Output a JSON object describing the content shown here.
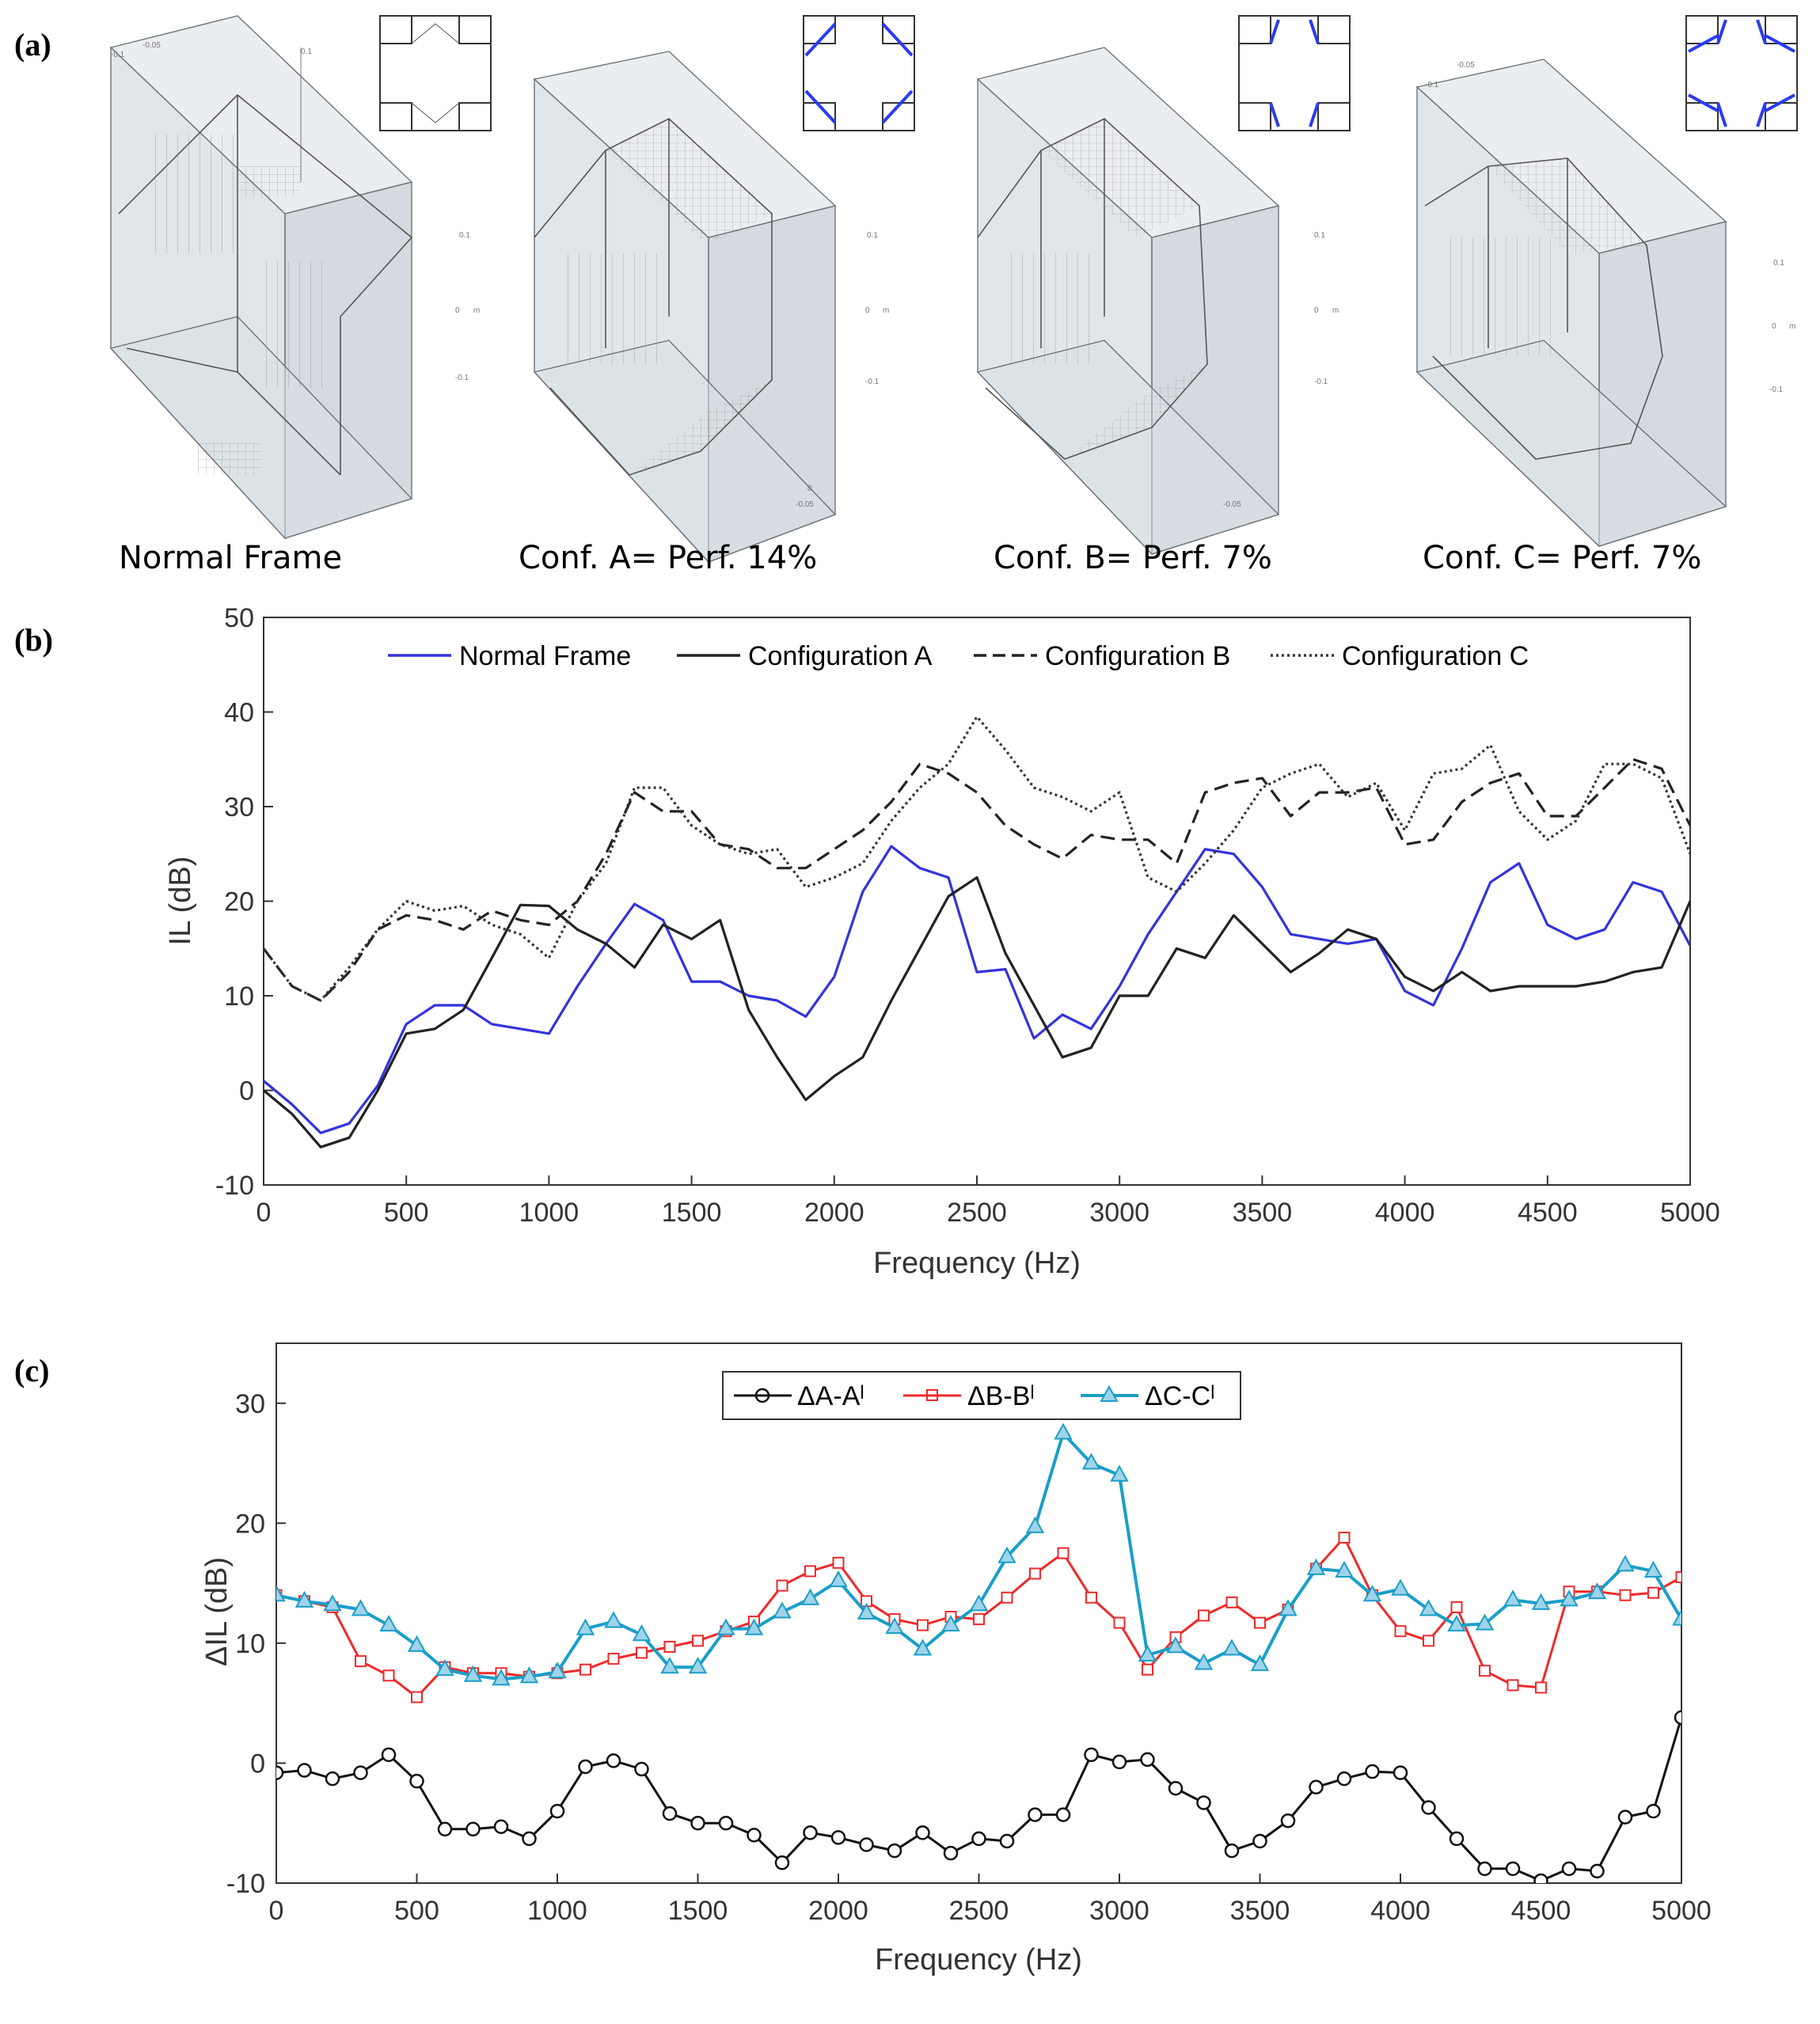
{
  "panel_labels": {
    "a": "(a)",
    "b": "(b)",
    "c": "(c)"
  },
  "panel_a": {
    "captions": [
      "Normal Frame",
      "Conf. A= Perf. 14%",
      "Conf. B= Perf. 7%",
      "Conf. C= Perf. 7%"
    ],
    "model_axis_ticks": [
      "0.1",
      "0",
      "-0.1",
      "-0.05",
      "0"
    ],
    "model_axis_unit": "m"
  },
  "colors": {
    "normal_frame": "#3333dd",
    "config_lines": "#222222",
    "delta_a": "#111111",
    "delta_b": "#ee2a2a",
    "delta_c": "#1a9ec8"
  },
  "chart_data": [
    {
      "type": "line",
      "panel": "b",
      "title": "",
      "xlabel": "Frequency (Hz)",
      "ylabel": "IL (dB)",
      "xlim": [
        0,
        5000
      ],
      "ylim": [
        -10,
        50
      ],
      "xticks": [
        0,
        500,
        1000,
        1500,
        2000,
        2500,
        3000,
        3500,
        4000,
        4500,
        5000
      ],
      "yticks": [
        -10,
        0,
        10,
        20,
        30,
        40,
        50
      ],
      "legend_position": "top",
      "x": [
        0,
        100,
        200,
        300,
        400,
        500,
        600,
        700,
        800,
        900,
        1000,
        1100,
        1200,
        1300,
        1400,
        1500,
        1600,
        1700,
        1800,
        1900,
        2000,
        2100,
        2200,
        2300,
        2400,
        2500,
        2600,
        2700,
        2800,
        2900,
        3000,
        3100,
        3200,
        3300,
        3400,
        3500,
        3600,
        3700,
        3800,
        3900,
        4000,
        4100,
        4200,
        4300,
        4400,
        4500,
        4600,
        4700,
        4800,
        4900,
        5000
      ],
      "series": [
        {
          "name": "Normal Frame",
          "style": "solid",
          "color": "#3333dd",
          "values": [
            1,
            -1.5,
            -4.5,
            -3.5,
            0.5,
            7,
            9,
            9,
            7,
            6.5,
            6,
            11,
            15.5,
            19.7,
            18,
            11.5,
            11.5,
            10,
            9.5,
            7.8,
            12,
            21,
            25.8,
            23.5,
            22.5,
            12.5,
            12.8,
            5.5,
            8,
            6.5,
            11,
            16.5,
            21,
            25.5,
            25,
            21.5,
            16.5,
            16,
            15.5,
            16,
            10.5,
            9,
            15,
            22,
            24,
            17.5,
            16,
            17,
            22,
            21,
            15.3
          ]
        },
        {
          "name": "Configuration A",
          "style": "solid",
          "color": "#222222",
          "values": [
            0,
            -2.5,
            -6,
            -5,
            0,
            6,
            6.5,
            8.5,
            14,
            19.6,
            19.5,
            17,
            15.5,
            13,
            17.5,
            16,
            18,
            8.5,
            3.5,
            -1,
            1.5,
            3.5,
            9.5,
            15,
            20.5,
            22.5,
            14.5,
            9,
            3.5,
            4.5,
            10,
            10,
            15,
            14,
            18.5,
            15.5,
            12.5,
            14.5,
            17,
            16,
            12,
            10.5,
            12.5,
            10.5,
            11,
            11,
            11,
            11.5,
            12.5,
            13,
            20
          ]
        },
        {
          "name": "Configuration B",
          "style": "dashed",
          "color": "#222222",
          "values": [
            15,
            11,
            9.5,
            12.5,
            17,
            18.5,
            18,
            17,
            19,
            18,
            17.5,
            20,
            25,
            31.5,
            29.5,
            29.5,
            26,
            25.5,
            23.5,
            23.5,
            25.5,
            27.5,
            30.5,
            34.5,
            33.5,
            31.5,
            28,
            26,
            24.5,
            27,
            26.5,
            26.5,
            24,
            31.5,
            32.5,
            33,
            29,
            31.5,
            31.5,
            32,
            26,
            26.5,
            30.5,
            32.5,
            33.5,
            29,
            29,
            32,
            35,
            34,
            28
          ]
        },
        {
          "name": "Configuration C",
          "style": "dotted",
          "color": "#333333",
          "values": [
            15,
            11,
            9.5,
            13,
            17,
            20,
            19,
            19.5,
            17.5,
            16.5,
            14,
            20,
            24,
            32,
            32,
            28,
            26,
            25,
            25.5,
            21.5,
            22.5,
            24,
            28.5,
            32,
            34.5,
            39.5,
            36,
            32,
            31,
            29.5,
            31.5,
            22.5,
            21,
            24,
            27.5,
            32,
            33.5,
            34.5,
            31,
            32.5,
            27.5,
            33.5,
            34,
            36.5,
            29.5,
            26.5,
            28.5,
            34.5,
            34.5,
            33,
            25
          ]
        }
      ]
    },
    {
      "type": "line",
      "panel": "c",
      "title": "",
      "xlabel": "Frequency (Hz)",
      "ylabel": "ΔIL (dB)",
      "xlim": [
        0,
        5000
      ],
      "ylim": [
        -10,
        35
      ],
      "xticks": [
        0,
        500,
        1000,
        1500,
        2000,
        2500,
        3000,
        3500,
        4000,
        4500,
        5000
      ],
      "yticks": [
        -10,
        0,
        10,
        20,
        30
      ],
      "legend_position": "top",
      "x": [
        0,
        100,
        200,
        300,
        400,
        500,
        600,
        700,
        800,
        900,
        1000,
        1100,
        1200,
        1300,
        1400,
        1500,
        1600,
        1700,
        1800,
        1900,
        2000,
        2100,
        2200,
        2300,
        2400,
        2500,
        2600,
        2700,
        2800,
        2900,
        3000,
        3100,
        3200,
        3300,
        3400,
        3500,
        3600,
        3700,
        3800,
        3900,
        4000,
        4100,
        4200,
        4300,
        4400,
        4500,
        4600,
        4700,
        4800,
        4900,
        5000
      ],
      "series": [
        {
          "name": "ΔA-Aˡ",
          "marker": "circle",
          "color": "#111111",
          "values": [
            -0.8,
            -0.6,
            -1.3,
            -0.8,
            0.7,
            -1.5,
            -5.5,
            -5.5,
            -5.3,
            -6.3,
            -4,
            -0.3,
            0.2,
            -0.5,
            -4.2,
            -5,
            -5,
            -6,
            -8.3,
            -5.8,
            -6.2,
            -6.8,
            -7.3,
            -5.8,
            -7.5,
            -6.3,
            -6.5,
            -4.3,
            -4.3,
            0.7,
            0.1,
            0.3,
            -2.1,
            -3.3,
            -7.3,
            -6.5,
            -4.8,
            -2,
            -1.3,
            -0.7,
            -0.8,
            -3.7,
            -6.3,
            -8.8,
            -8.8,
            -9.8,
            -8.8,
            -9,
            -4.5,
            -4,
            3.8
          ]
        },
        {
          "name": "ΔB-Bˡ",
          "marker": "square",
          "color": "#ee2a2a",
          "values": [
            14,
            13.5,
            13,
            8.5,
            7.3,
            5.5,
            8,
            7.5,
            7.5,
            7.2,
            7.5,
            7.8,
            8.7,
            9.2,
            9.7,
            10.2,
            11,
            11.8,
            14.8,
            16,
            16.7,
            13.5,
            12,
            11.5,
            12.2,
            12,
            13.8,
            15.8,
            17.5,
            13.8,
            11.7,
            7.8,
            10.5,
            12.3,
            13.4,
            11.7,
            12.8,
            16.2,
            18.8,
            14,
            11,
            10.2,
            13,
            7.7,
            6.5,
            6.3,
            14.3,
            14.3,
            14,
            14.2,
            15.5
          ]
        },
        {
          "name": "ΔC-Cˡ",
          "marker": "triangle",
          "color": "#1a9ec8",
          "values": [
            14,
            13.5,
            13.2,
            12.8,
            11.5,
            9.8,
            7.8,
            7.3,
            7,
            7.2,
            7.6,
            11.2,
            11.8,
            10.7,
            8,
            8,
            11.2,
            11.2,
            12.6,
            13.7,
            15.2,
            12.5,
            11.3,
            9.5,
            11.5,
            13.2,
            17.2,
            19.7,
            27.5,
            25,
            24,
            9,
            9.7,
            8.3,
            9.5,
            8.2,
            12.8,
            16.2,
            16,
            14,
            14.5,
            12.8,
            11.5,
            11.6,
            13.6,
            13.3,
            13.6,
            14.2,
            16.5,
            16,
            12
          ]
        }
      ]
    }
  ]
}
